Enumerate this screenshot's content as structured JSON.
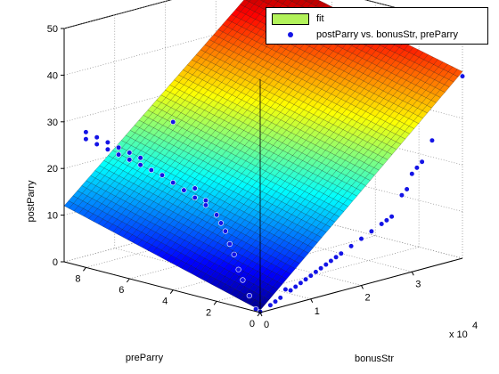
{
  "chart_data": {
    "type": "surface-scatter3d",
    "zlabel": "postParry",
    "ylabel": "preParry",
    "xlabel": "bonusStr",
    "x_exponent_label": "x 10",
    "x_exponent_power": "4",
    "xlim": [
      0,
      40000
    ],
    "ylim": [
      0,
      9
    ],
    "zlim": [
      0,
      50
    ],
    "x_ticks": [
      0,
      10000,
      20000,
      30000
    ],
    "x_tick_labels": [
      "0",
      "1",
      "2",
      "3"
    ],
    "y_ticks": [
      0,
      2,
      4,
      6,
      8
    ],
    "y_tick_labels": [
      "0",
      "2",
      "4",
      "6",
      "8"
    ],
    "z_ticks": [
      0,
      10,
      20,
      30,
      40,
      50
    ],
    "z_tick_labels": [
      "0",
      "10",
      "20",
      "30",
      "40",
      "50"
    ],
    "grid": true,
    "colormap": "jet",
    "legend_position": "top-right",
    "legend": [
      {
        "label": "fit",
        "kind": "surface",
        "color": "#b2f25a"
      },
      {
        "label": "postParry vs. bonusStr, preParry",
        "kind": "marker",
        "color": "#1414e6"
      }
    ],
    "surface": {
      "name": "fit",
      "corners": {
        "x0_y0": 0.5,
        "x1_y0": 40,
        "x0_y1": 12,
        "x1_y1": 50
      }
    },
    "points": [
      [
        0,
        8,
        27.5
      ],
      [
        0,
        7.5,
        27
      ],
      [
        0,
        7,
        26.5
      ],
      [
        0,
        6.5,
        26
      ],
      [
        0,
        6,
        25.5
      ],
      [
        0,
        5.5,
        25
      ],
      [
        0,
        5,
        24.5
      ],
      [
        0,
        4.5,
        24
      ],
      [
        0,
        4,
        23
      ],
      [
        0,
        3.5,
        22
      ],
      [
        0,
        3,
        21
      ],
      [
        0,
        2.5,
        20
      ],
      [
        0,
        2,
        18.5
      ],
      [
        0,
        1.8,
        17
      ],
      [
        0,
        1.6,
        15.5
      ],
      [
        0,
        1.4,
        13
      ],
      [
        0,
        1.2,
        11
      ],
      [
        0,
        1,
        8
      ],
      [
        0,
        0.8,
        6
      ],
      [
        0,
        0.5,
        3
      ],
      [
        0,
        0.2,
        0.5
      ],
      [
        0,
        0,
        0.2
      ],
      [
        0,
        8,
        29
      ],
      [
        0,
        7.5,
        28.5
      ],
      [
        0,
        7,
        28
      ],
      [
        0,
        6.5,
        27.5
      ],
      [
        0,
        6,
        27
      ],
      [
        0,
        5.5,
        26.5
      ],
      [
        0,
        3,
        23
      ],
      [
        0,
        2.5,
        21
      ],
      [
        0,
        4,
        36
      ],
      [
        2000,
        0,
        1
      ],
      [
        4000,
        0,
        2
      ],
      [
        6000,
        0,
        3
      ],
      [
        8000,
        0,
        4
      ],
      [
        10000,
        0,
        5
      ],
      [
        12000,
        0,
        6
      ],
      [
        14000,
        0,
        7
      ],
      [
        16000,
        0,
        8
      ],
      [
        18000,
        0,
        9
      ],
      [
        20000,
        0,
        10
      ],
      [
        22000,
        0,
        11
      ],
      [
        24000,
        0,
        12
      ],
      [
        26000,
        0,
        13
      ],
      [
        28000,
        0,
        17
      ],
      [
        29000,
        0,
        18
      ],
      [
        30000,
        0,
        21
      ],
      [
        31000,
        0,
        22
      ],
      [
        32000,
        0,
        23
      ],
      [
        34000,
        0,
        27
      ],
      [
        40000,
        0,
        39
      ],
      [
        5000,
        0,
        3.5
      ],
      [
        15000,
        0,
        7.5
      ],
      [
        25000,
        0,
        12.5
      ],
      [
        3000,
        0,
        1.5
      ],
      [
        7000,
        0,
        3.5
      ],
      [
        9000,
        0,
        4.5
      ],
      [
        11000,
        0,
        5.5
      ],
      [
        13000,
        0,
        6.5
      ]
    ]
  }
}
